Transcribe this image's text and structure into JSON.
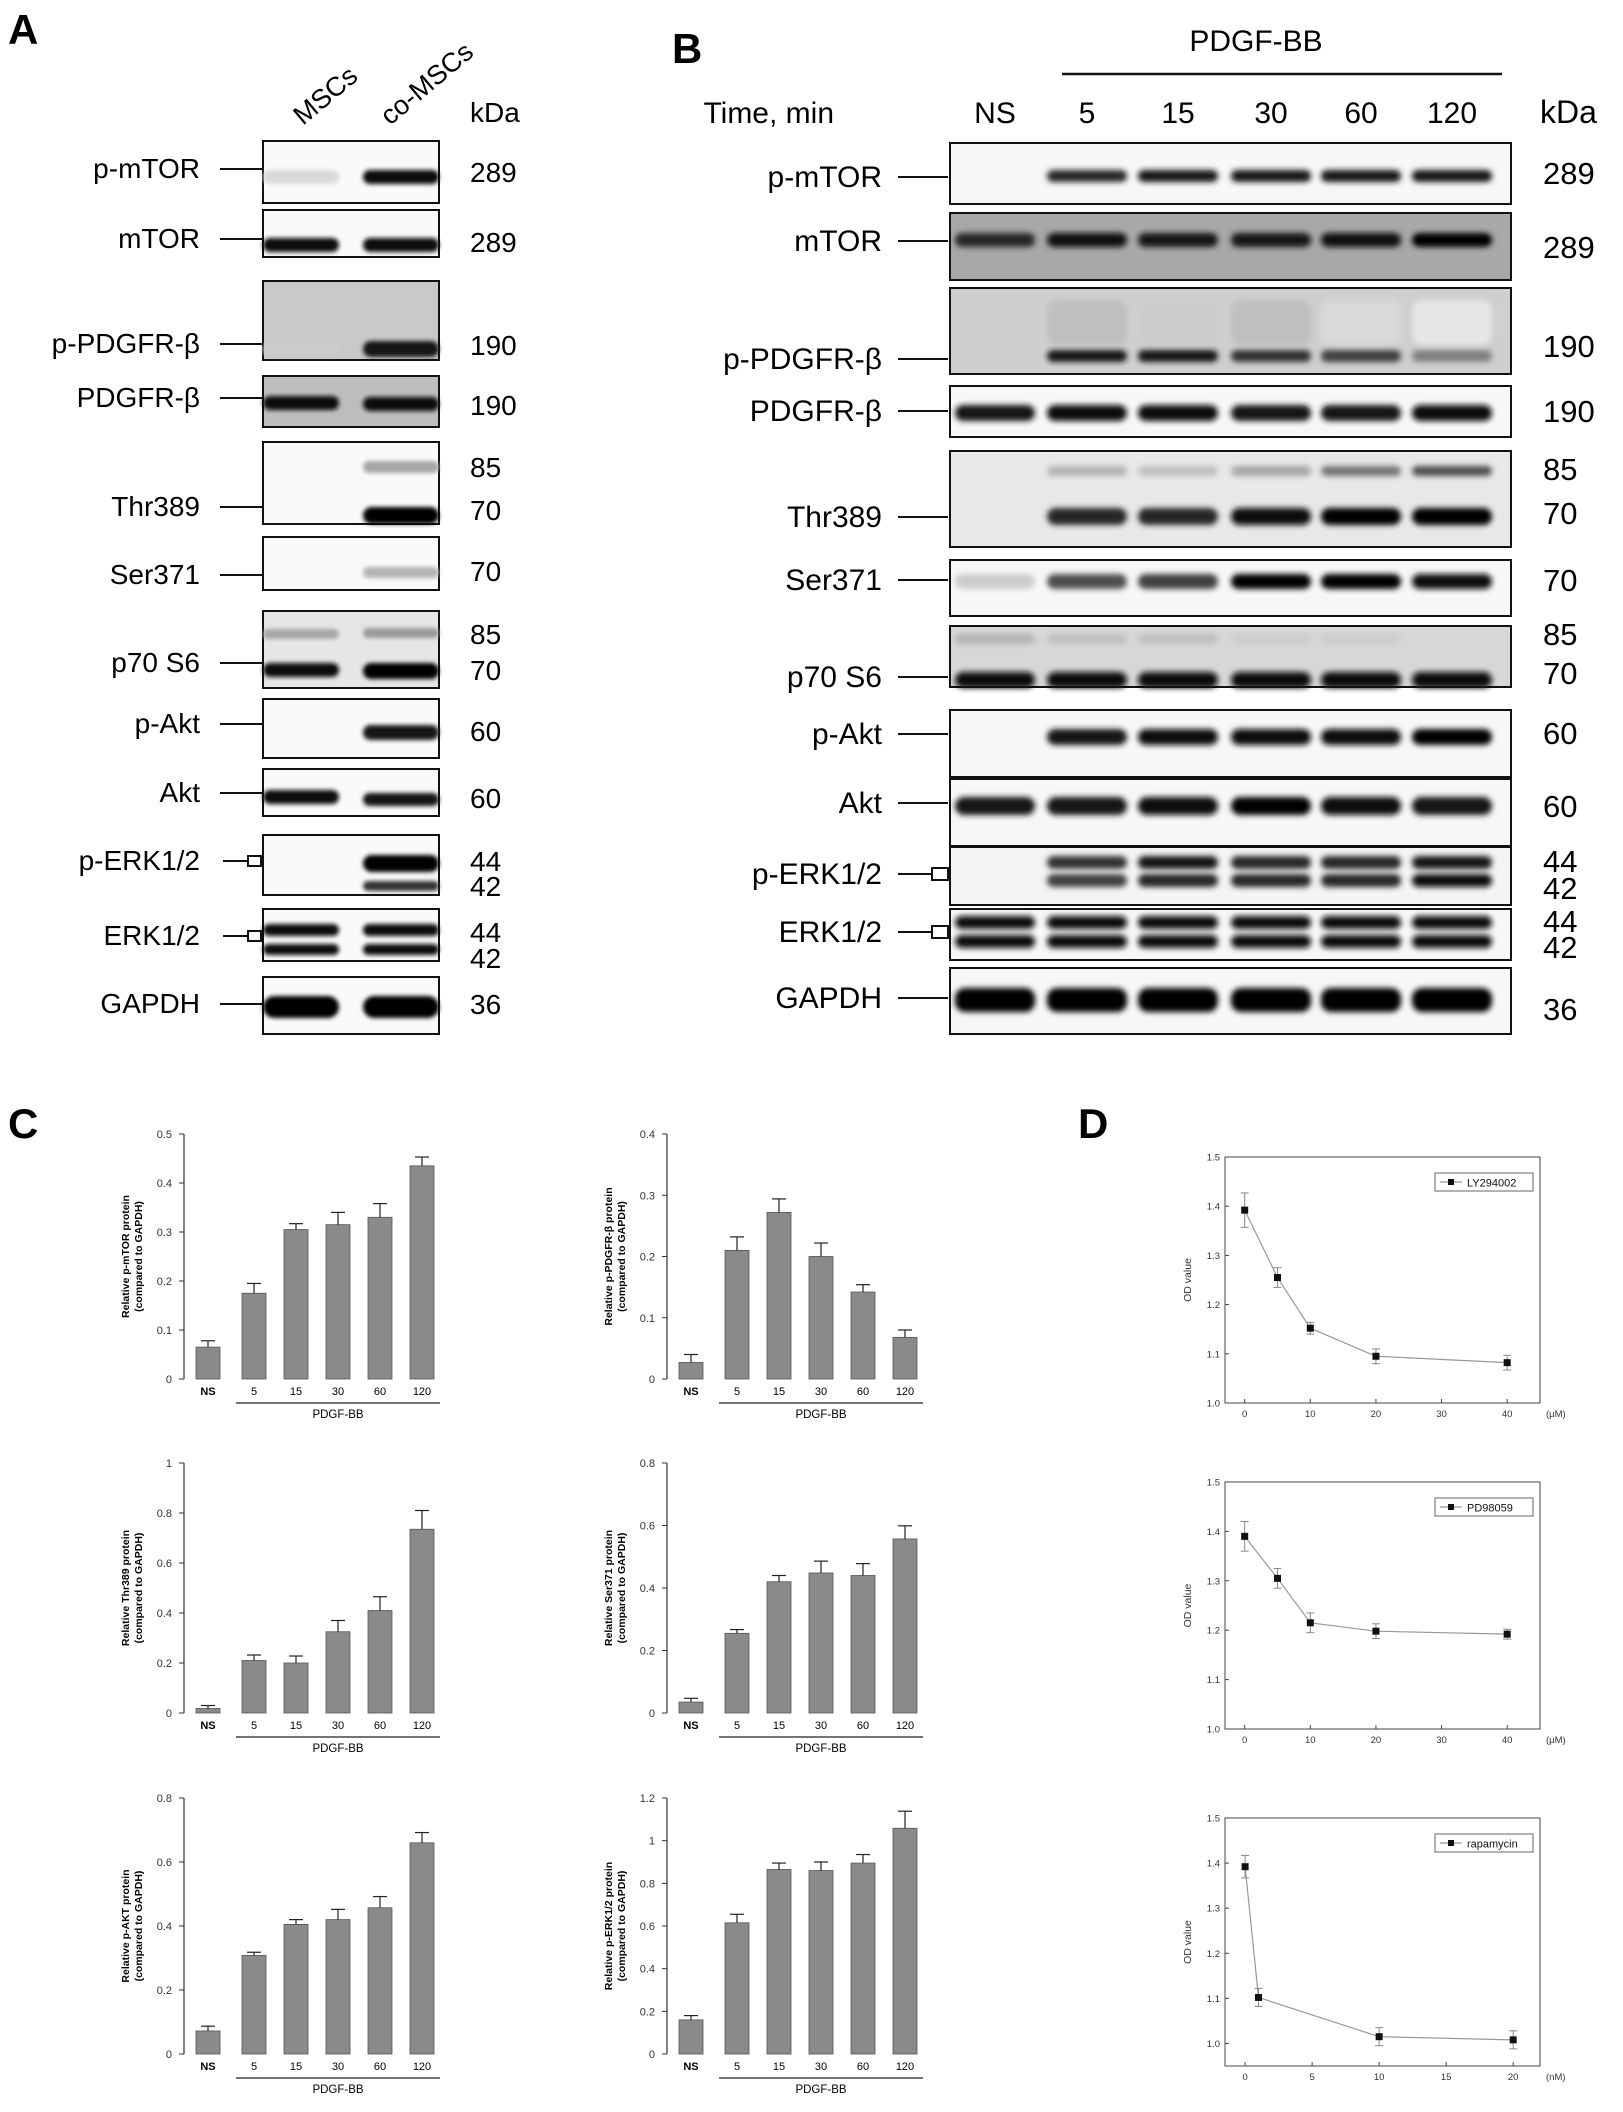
{
  "panel_labels": {
    "a": "A",
    "b": "B",
    "c": "C",
    "d": "D"
  },
  "blots": {
    "A": {
      "lanes": [
        "MSCs",
        "co-MSCs"
      ],
      "kda_header": "kDa",
      "rows": [
        {
          "label": "p-mTOR",
          "kda": [
            "289"
          ]
        },
        {
          "label": "mTOR",
          "kda": [
            "289"
          ]
        },
        {
          "label": "p-PDGFR-β",
          "kda": [
            "190"
          ]
        },
        {
          "label": "PDGFR-β",
          "kda": [
            "190"
          ]
        },
        {
          "label": "Thr389",
          "kda": [
            "85",
            "70"
          ]
        },
        {
          "label": "Ser371",
          "kda": [
            "70"
          ]
        },
        {
          "label": "p70 S6",
          "kda": [
            "85",
            "70"
          ]
        },
        {
          "label": "p-Akt",
          "kda": [
            "60"
          ]
        },
        {
          "label": "Akt",
          "kda": [
            "60"
          ]
        },
        {
          "label": "p-ERK1/2",
          "kda": [
            "44",
            "42"
          ]
        },
        {
          "label": "ERK1/2",
          "kda": [
            "44",
            "42"
          ]
        },
        {
          "label": "GAPDH",
          "kda": [
            "36"
          ]
        }
      ]
    },
    "B": {
      "treatment": "PDGF-BB",
      "time_label": "Time, min",
      "lanes": [
        "NS",
        "5",
        "15",
        "30",
        "60",
        "120"
      ],
      "kda_header": "kDa",
      "rows": [
        {
          "label": "p-mTOR",
          "kda": [
            "289"
          ]
        },
        {
          "label": "mTOR",
          "kda": [
            "289"
          ]
        },
        {
          "label": "p-PDGFR-β",
          "kda": [
            "190"
          ]
        },
        {
          "label": "PDGFR-β",
          "kda": [
            "190"
          ]
        },
        {
          "label": "Thr389",
          "kda": [
            "85",
            "70"
          ]
        },
        {
          "label": "Ser371",
          "kda": [
            "70"
          ]
        },
        {
          "label": "p70 S6",
          "kda": [
            "85",
            "70"
          ]
        },
        {
          "label": "p-Akt",
          "kda": [
            "60"
          ]
        },
        {
          "label": "Akt",
          "kda": [
            "60"
          ]
        },
        {
          "label": "p-ERK1/2",
          "kda": [
            "44",
            "42"
          ]
        },
        {
          "label": "ERK1/2",
          "kda": [
            "44",
            "42"
          ]
        },
        {
          "label": "GAPDH",
          "kda": [
            "36"
          ]
        }
      ]
    }
  },
  "chart_data": [
    {
      "type": "bar",
      "panel": "C",
      "categories": [
        "NS",
        "5",
        "15",
        "30",
        "60",
        "120"
      ],
      "group_label": "PDGF-BB",
      "ylabel": "Relative p-mTOR protein (compared to GAPDH)",
      "ylim": [
        0,
        0.5
      ],
      "yticks": [
        "0",
        "0.1",
        "0.2",
        "0.3",
        "0.4",
        "0.5"
      ],
      "values": [
        0.065,
        0.175,
        0.305,
        0.315,
        0.33,
        0.435
      ],
      "errors": [
        0.013,
        0.02,
        0.012,
        0.025,
        0.028,
        0.018
      ]
    },
    {
      "type": "bar",
      "panel": "C",
      "categories": [
        "NS",
        "5",
        "15",
        "30",
        "60",
        "120"
      ],
      "group_label": "PDGF-BB",
      "ylabel": "Relative p-PDGFR-β protein (compared to GAPDH)",
      "ylim": [
        0,
        0.4
      ],
      "yticks": [
        "0",
        "0.1",
        "0.2",
        "0.3",
        "0.4"
      ],
      "values": [
        0.027,
        0.21,
        0.272,
        0.2,
        0.142,
        0.068
      ],
      "errors": [
        0.013,
        0.022,
        0.022,
        0.022,
        0.012,
        0.012
      ]
    },
    {
      "type": "bar",
      "panel": "C",
      "categories": [
        "NS",
        "5",
        "15",
        "30",
        "60",
        "120"
      ],
      "group_label": "PDGF-BB",
      "ylabel": "Relative Thr389 protein (compared to GAPDH)",
      "ylim": [
        0,
        1
      ],
      "yticks": [
        "0",
        "0.2",
        "0.4",
        "0.6",
        "0.8",
        "1"
      ],
      "values": [
        0.018,
        0.21,
        0.2,
        0.325,
        0.41,
        0.735
      ],
      "errors": [
        0.012,
        0.022,
        0.028,
        0.045,
        0.055,
        0.075
      ]
    },
    {
      "type": "bar",
      "panel": "C",
      "categories": [
        "NS",
        "5",
        "15",
        "30",
        "60",
        "120"
      ],
      "group_label": "PDGF-BB",
      "ylabel": "Relative Ser371 protein (compared to GAPDH)",
      "ylim": [
        0,
        0.8
      ],
      "yticks": [
        "0",
        "0.2",
        "0.4",
        "0.6",
        "0.8"
      ],
      "values": [
        0.035,
        0.255,
        0.42,
        0.448,
        0.44,
        0.557
      ],
      "errors": [
        0.012,
        0.012,
        0.02,
        0.038,
        0.038,
        0.042
      ]
    },
    {
      "type": "bar",
      "panel": "C",
      "categories": [
        "NS",
        "5",
        "15",
        "30",
        "60",
        "120"
      ],
      "group_label": "PDGF-BB",
      "ylabel": "Relative p-AKT protein (compared to GAPDH)",
      "ylim": [
        0,
        0.8
      ],
      "yticks": [
        "0",
        "0.2",
        "0.4",
        "0.6",
        "0.8"
      ],
      "values": [
        0.072,
        0.308,
        0.405,
        0.42,
        0.457,
        0.66
      ],
      "errors": [
        0.015,
        0.01,
        0.015,
        0.032,
        0.035,
        0.032
      ]
    },
    {
      "type": "bar",
      "panel": "C",
      "categories": [
        "NS",
        "5",
        "15",
        "30",
        "60",
        "120"
      ],
      "group_label": "PDGF-BB",
      "ylabel": "Relative p-ERK1/2 protein (compared to GAPDH)",
      "ylim": [
        0,
        1.2
      ],
      "yticks": [
        "0",
        "0.2",
        "0.4",
        "0.6",
        "0.8",
        "1",
        "1.2"
      ],
      "values": [
        0.16,
        0.615,
        0.865,
        0.86,
        0.895,
        1.058
      ],
      "errors": [
        0.02,
        0.04,
        0.03,
        0.04,
        0.04,
        0.08
      ]
    },
    {
      "type": "line",
      "panel": "D",
      "series": [
        {
          "name": "LY294002"
        }
      ],
      "ylabel": "OD value",
      "unit": "(μM)",
      "x": [
        0,
        5,
        10,
        20,
        40
      ],
      "y": [
        1.392,
        1.255,
        1.152,
        1.095,
        1.082
      ],
      "errors": [
        0.035,
        0.02,
        0.012,
        0.015,
        0.015
      ],
      "xlim": [
        -3,
        45
      ],
      "ylim": [
        1.0,
        1.5
      ],
      "xticks": [
        0,
        10,
        20,
        30,
        40
      ],
      "ytick_labels": [
        "1.0",
        "1.1",
        "1.2",
        "1.3",
        "1.4",
        "1.5"
      ]
    },
    {
      "type": "line",
      "panel": "D",
      "series": [
        {
          "name": "PD98059"
        }
      ],
      "ylabel": "OD value",
      "unit": "(μM)",
      "x": [
        0,
        5,
        10,
        20,
        40
      ],
      "y": [
        1.39,
        1.305,
        1.215,
        1.198,
        1.192
      ],
      "errors": [
        0.03,
        0.02,
        0.02,
        0.015,
        0.01
      ],
      "xlim": [
        -3,
        45
      ],
      "ylim": [
        1.0,
        1.5
      ],
      "xticks": [
        0,
        10,
        20,
        30,
        40
      ],
      "ytick_labels": [
        "1.0",
        "1.1",
        "1.2",
        "1.3",
        "1.4",
        "1.5"
      ]
    },
    {
      "type": "line",
      "panel": "D",
      "series": [
        {
          "name": "rapamycin"
        }
      ],
      "ylabel": "OD value",
      "unit": "(nM)",
      "x": [
        0,
        1,
        10,
        20
      ],
      "y": [
        1.392,
        1.102,
        1.015,
        1.008
      ],
      "errors": [
        0.025,
        0.02,
        0.02,
        0.02
      ],
      "xlim": [
        -1.5,
        22
      ],
      "ylim": [
        0.95,
        1.5
      ],
      "xticks": [
        0,
        5,
        10,
        15,
        20
      ],
      "ytick_labels": [
        "1.0",
        "1.1",
        "1.2",
        "1.3",
        "1.4",
        "1.5"
      ]
    }
  ]
}
